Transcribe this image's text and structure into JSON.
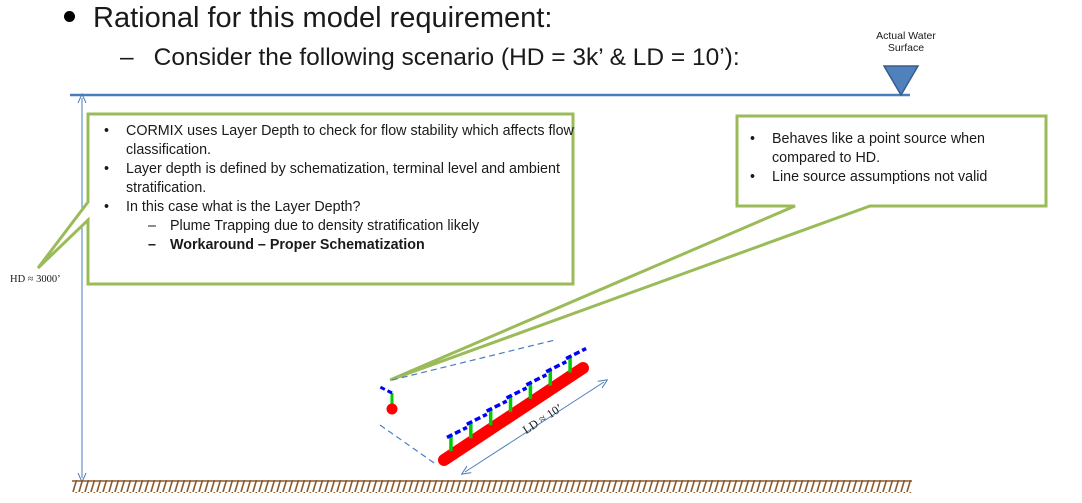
{
  "heading": {
    "bullet1": "Rational for this model requirement:",
    "bullet2_dash": "–",
    "bullet2": "Consider the following scenario (HD = 3k’ & LD = 10’):"
  },
  "water_surface_label": "Actual Water Surface",
  "hd_label": "HD ≈ 3000’",
  "ld_label": "LD ≈ 10’",
  "callout_left": {
    "items": [
      {
        "text": "CORMIX uses Layer Depth to check for flow stability which affects flow classification.",
        "level": 1
      },
      {
        "text": "Layer depth is defined by schematization, terminal level and ambient stratification.",
        "level": 1
      },
      {
        "text": "In this case what is the Layer Depth?",
        "level": 1
      },
      {
        "text": "Plume Trapping due to density stratification likely",
        "level": 2
      },
      {
        "text": "Workaround – Proper Schematization",
        "level": 2,
        "bold": true
      }
    ]
  },
  "callout_right": {
    "items": [
      {
        "text": "Behaves like a point source when compared to HD.",
        "level": 1
      },
      {
        "text": "Line source assumptions not valid",
        "level": 1
      }
    ]
  },
  "colors": {
    "water_line": "#4a7ebb",
    "callout_border": "#9bbb59",
    "pipe": "#ff0000",
    "riser": "#00cc00",
    "port_dashes": "#0000ff",
    "guide_dashes": "#4a7ebb",
    "seabed": "#8b5a2b",
    "triangle_fill": "#4f81bd",
    "triangle_stroke": "#385d8a"
  },
  "icons": {
    "water_surface_marker": "inverted-triangle",
    "bullet": "•",
    "dash": "–"
  }
}
